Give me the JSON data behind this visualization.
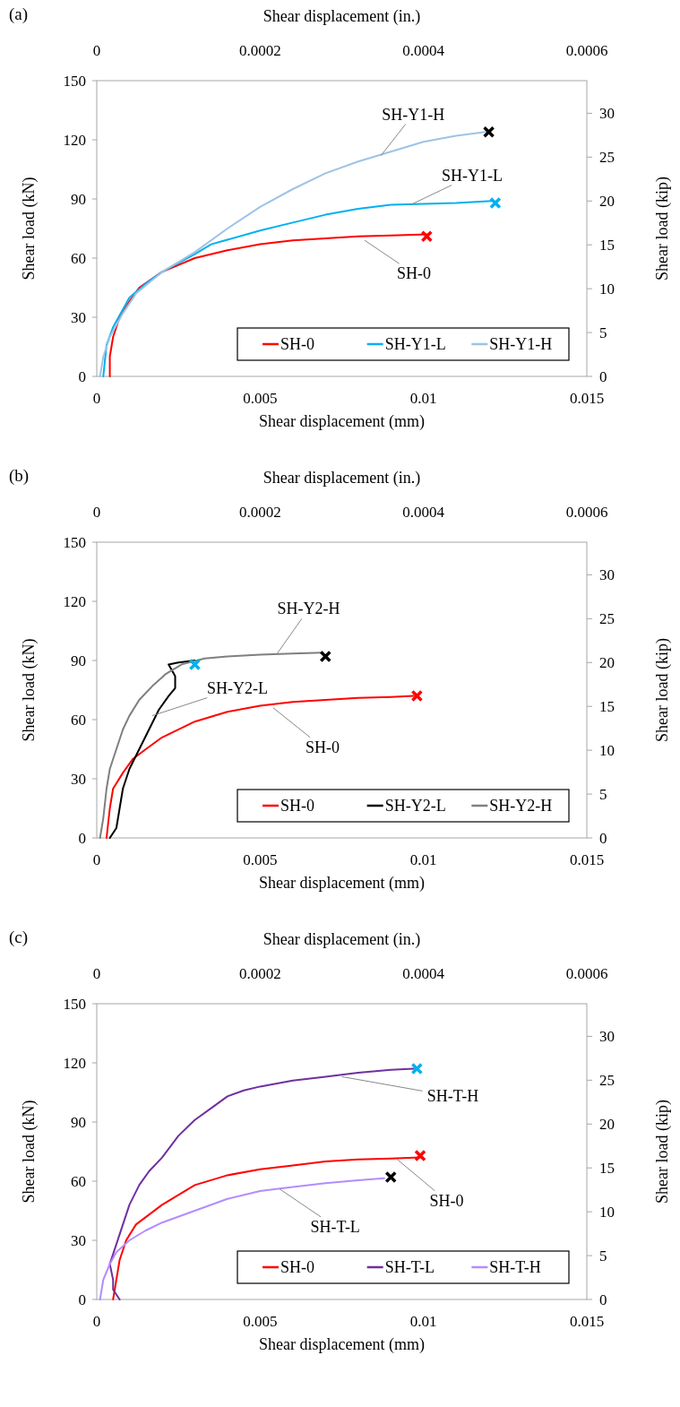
{
  "chart_data": [
    {
      "type": "line",
      "title": "(a)",
      "xlabel": "Shear displacement (mm)",
      "x2label": "Shear displacement (in.)",
      "ylabel": "Shear load (kN)",
      "y2label": "Shear load (kip)",
      "xlim": [
        0,
        0.015
      ],
      "xticks": [
        0,
        0.005,
        0.01,
        0.015
      ],
      "x2lim": [
        0,
        0.0006
      ],
      "x2ticks": [
        0,
        0.0002,
        0.0004,
        0.0006
      ],
      "ylim": [
        0,
        150
      ],
      "yticks": [
        0,
        30,
        60,
        90,
        120,
        150
      ],
      "y2lim": [
        0,
        33.72
      ],
      "y2ticks": [
        0,
        5,
        10,
        15,
        20,
        25,
        30
      ],
      "grid": false,
      "legend": "bottom right",
      "annotations": [
        {
          "text": "SH-Y1-H",
          "x": 0.0087,
          "y": 112
        },
        {
          "text": "SH-Y1-L",
          "x": 0.0096,
          "y": 87
        },
        {
          "text": "SH-0",
          "x": 0.0082,
          "y": 69
        }
      ],
      "series": [
        {
          "name": "SH-0",
          "color": "#ff0000",
          "x": [
            0.0004,
            0.0004,
            0.0005,
            0.0007,
            0.001,
            0.0013,
            0.002,
            0.003,
            0.004,
            0.005,
            0.006,
            0.007,
            0.008,
            0.009,
            0.0101
          ],
          "values": [
            0,
            10,
            20,
            30,
            38,
            45,
            53,
            60,
            64,
            67,
            69,
            70,
            71,
            71.5,
            72
          ]
        },
        {
          "name": "SH-Y1-L",
          "color": "#00b0f0",
          "x": [
            0.0002,
            0.0003,
            0.0005,
            0.001,
            0.0015,
            0.002,
            0.003,
            0.0035,
            0.005,
            0.006,
            0.007,
            0.008,
            0.009,
            0.01,
            0.011,
            0.0121
          ],
          "values": [
            0,
            16,
            25,
            40,
            47,
            53,
            62,
            67,
            74,
            78,
            82,
            85,
            87,
            87.5,
            88,
            89
          ]
        },
        {
          "name": "SH-Y1-H",
          "color": "#9dc3e6",
          "x": [
            0.0001,
            0.0002,
            0.0004,
            0.0008,
            0.0012,
            0.002,
            0.003,
            0.004,
            0.005,
            0.006,
            0.007,
            0.008,
            0.009,
            0.01,
            0.011,
            0.0119
          ],
          "values": [
            0,
            10,
            20,
            32,
            42,
            53,
            63,
            75,
            86,
            95,
            103,
            109,
            114,
            119,
            122,
            124
          ]
        },
        {
          "type": "scatter",
          "marker": "cross",
          "color": "#ff0000",
          "x": [
            0.0101
          ],
          "values": [
            71
          ]
        },
        {
          "type": "scatter",
          "marker": "cross",
          "color": "#00b0f0",
          "x": [
            0.0122
          ],
          "values": [
            88
          ]
        },
        {
          "type": "scatter",
          "marker": "cross",
          "color": "#000000",
          "x": [
            0.012
          ],
          "values": [
            124
          ]
        }
      ]
    },
    {
      "type": "line",
      "title": "(b)",
      "xlabel": "Shear displacement (mm)",
      "x2label": "Shear displacement (in.)",
      "ylabel": "Shear load (kN)",
      "y2label": "Shear load (kip)",
      "xlim": [
        0,
        0.015
      ],
      "xticks": [
        0,
        0.005,
        0.01,
        0.015
      ],
      "x2lim": [
        0,
        0.0006
      ],
      "x2ticks": [
        0,
        0.0002,
        0.0004,
        0.0006
      ],
      "ylim": [
        0,
        150
      ],
      "yticks": [
        0,
        30,
        60,
        90,
        120,
        150
      ],
      "y2lim": [
        0,
        33.72
      ],
      "y2ticks": [
        0,
        5,
        10,
        15,
        20,
        25,
        30
      ],
      "grid": false,
      "legend": "bottom right",
      "annotations": [
        {
          "text": "SH-Y2-H",
          "x": 0.0055,
          "y": 93
        },
        {
          "text": "SH-Y2-L",
          "x": 0.0017,
          "y": 62
        },
        {
          "text": "SH-0",
          "x": 0.0054,
          "y": 66
        }
      ],
      "series": [
        {
          "name": "SH-0",
          "color": "#ff0000",
          "x": [
            0.0003,
            0.0004,
            0.0005,
            0.0008,
            0.0011,
            0.0015,
            0.002,
            0.003,
            0.004,
            0.005,
            0.006,
            0.007,
            0.008,
            0.009,
            0.0097
          ],
          "values": [
            0,
            15,
            25,
            33,
            40,
            45,
            51,
            59,
            64,
            67,
            69,
            70,
            71,
            71.5,
            72
          ]
        },
        {
          "name": "SH-Y2-L",
          "color": "#000000",
          "x": [
            0.0004,
            0.0006,
            0.0007,
            0.0008,
            0.001,
            0.0013,
            0.0016,
            0.0019,
            0.0022,
            0.0024,
            0.0024,
            0.0023,
            0.0022,
            0.0025,
            0.003
          ],
          "values": [
            0,
            5,
            15,
            25,
            35,
            45,
            55,
            65,
            72,
            76,
            82,
            85,
            88,
            89,
            90
          ]
        },
        {
          "name": "SH-Y2-H",
          "color": "#7f7f7f",
          "x": [
            0.0001,
            0.0002,
            0.0003,
            0.0004,
            0.0006,
            0.0008,
            0.001,
            0.0013,
            0.0017,
            0.0021,
            0.0026,
            0.0033,
            0.004,
            0.005,
            0.006,
            0.0069
          ],
          "values": [
            0,
            10,
            25,
            35,
            45,
            55,
            62,
            70,
            77,
            83,
            88,
            91,
            92,
            93,
            93.5,
            94
          ]
        },
        {
          "type": "scatter",
          "marker": "cross",
          "color": "#ff0000",
          "x": [
            0.0098
          ],
          "values": [
            72
          ]
        },
        {
          "type": "scatter",
          "marker": "cross",
          "color": "#00b0f0",
          "x": [
            0.003
          ],
          "values": [
            88
          ]
        },
        {
          "type": "scatter",
          "marker": "cross",
          "color": "#000000",
          "x": [
            0.007
          ],
          "values": [
            92
          ]
        }
      ]
    },
    {
      "type": "line",
      "title": "(c)",
      "xlabel": "Shear displacement (mm)",
      "x2label": "Shear displacement (in.)",
      "ylabel": "Shear load (kN)",
      "y2label": "Shear load (kip)",
      "xlim": [
        0,
        0.015
      ],
      "xticks": [
        0,
        0.005,
        0.01,
        0.015
      ],
      "x2lim": [
        0,
        0.0006
      ],
      "x2ticks": [
        0,
        0.0002,
        0.0004,
        0.0006
      ],
      "ylim": [
        0,
        150
      ],
      "yticks": [
        0,
        30,
        60,
        90,
        120,
        150
      ],
      "y2lim": [
        0,
        33.72
      ],
      "y2ticks": [
        0,
        5,
        10,
        15,
        20,
        25,
        30
      ],
      "grid": false,
      "legend": "bottom right",
      "annotations": [
        {
          "text": "SH-T-H",
          "x": 0.0075,
          "y": 113
        },
        {
          "text": "SH-0",
          "x": 0.0092,
          "y": 71
        },
        {
          "text": "SH-T-L",
          "x": 0.0056,
          "y": 56
        }
      ],
      "series": [
        {
          "name": "SH-0",
          "color": "#ff0000",
          "x": [
            0.0005,
            0.0006,
            0.0007,
            0.0009,
            0.0012,
            0.0016,
            0.002,
            0.003,
            0.004,
            0.005,
            0.006,
            0.007,
            0.008,
            0.009,
            0.0099
          ],
          "values": [
            0,
            10,
            20,
            30,
            38,
            43,
            48,
            58,
            63,
            66,
            68,
            70,
            71,
            71.5,
            72
          ]
        },
        {
          "name": "SH-T-L",
          "color": "#7030a0",
          "x": [
            0.0007,
            0.0005,
            0.0005,
            0.0004,
            0.0006,
            0.0008,
            0.001,
            0.0013,
            0.0016,
            0.002,
            0.0025,
            0.003,
            0.0035,
            0.004,
            0.0045,
            0.005,
            0.006,
            0.007,
            0.008,
            0.009,
            0.0097
          ],
          "values": [
            0,
            5,
            10,
            18,
            28,
            38,
            48,
            58,
            65,
            72,
            83,
            91,
            97,
            103,
            106,
            108,
            111,
            113,
            115,
            116.5,
            117
          ]
        },
        {
          "name": "SH-T-H",
          "color": "#b38cff",
          "x": [
            0.0001,
            0.0002,
            0.0004,
            0.0006,
            0.001,
            0.0015,
            0.002,
            0.003,
            0.004,
            0.005,
            0.006,
            0.007,
            0.008,
            0.0088
          ],
          "values": [
            0,
            10,
            18,
            24,
            30,
            35,
            39,
            45,
            51,
            55,
            57,
            59,
            60.5,
            61.5
          ]
        },
        {
          "type": "scatter",
          "marker": "cross",
          "color": "#ff0000",
          "x": [
            0.0099
          ],
          "values": [
            73
          ]
        },
        {
          "type": "scatter",
          "marker": "cross",
          "color": "#00b0f0",
          "x": [
            0.0098
          ],
          "values": [
            117
          ]
        },
        {
          "type": "scatter",
          "marker": "cross",
          "color": "#000000",
          "x": [
            0.009
          ],
          "values": [
            62
          ]
        }
      ]
    }
  ]
}
